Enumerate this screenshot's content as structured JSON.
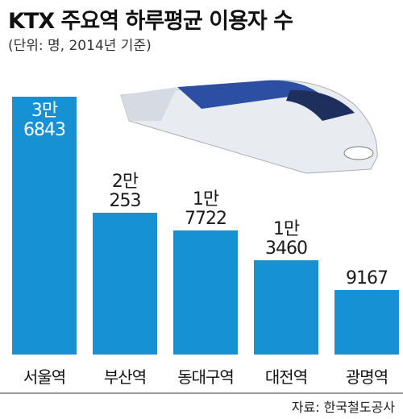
{
  "chart_data": {
    "type": "bar",
    "title": "KTX 주요역 하루평균 이용자 수",
    "subtitle": "(단위: 명, 2014년 기준)",
    "categories": [
      "서울역",
      "부산역",
      "동대구역",
      "대전역",
      "광명역"
    ],
    "values": [
      36843,
      20253,
      17722,
      13460,
      9167
    ],
    "value_labels": [
      "3만\n6843",
      "2만\n253",
      "1만\n7722",
      "1만\n3460",
      "9167"
    ],
    "color": "#1591d4",
    "ylim": [
      0,
      40000
    ],
    "source": "자료: 한국철도공사"
  }
}
